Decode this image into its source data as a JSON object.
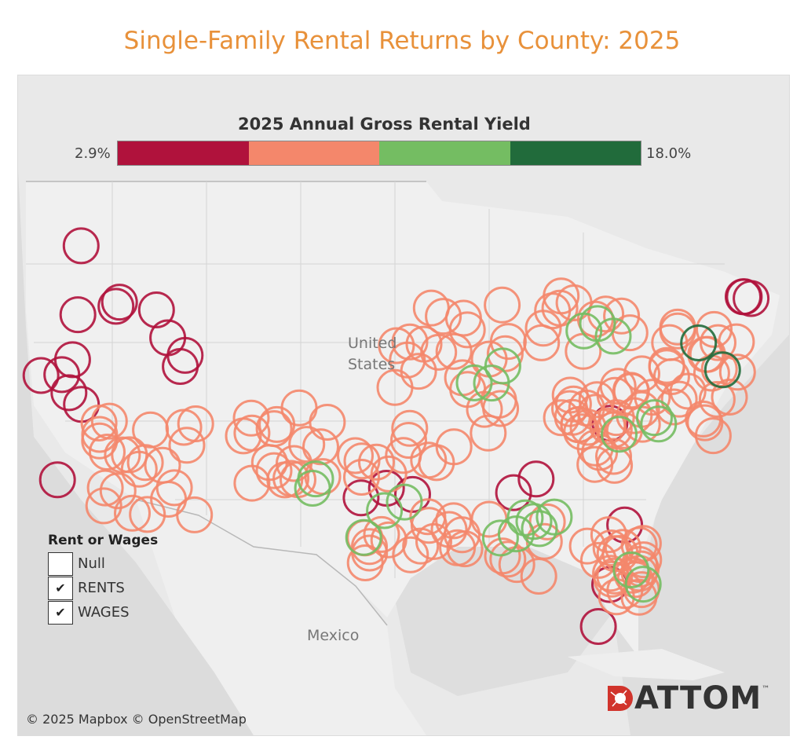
{
  "title": "Single-Family Rental Returns by County: 2025",
  "legend": {
    "title": "2025 Annual Gross Rental Yield",
    "min_label": "2.9%",
    "max_label": "18.0%",
    "colors": [
      "#b0123c",
      "#f4876b",
      "#74bd62",
      "#216b3b"
    ]
  },
  "map_labels": {
    "country_us_line1": "United",
    "country_us_line2": "States",
    "country_mexico": "Mexico"
  },
  "filter": {
    "title": "Rent or Wages",
    "options": [
      {
        "label": "Null",
        "checked": false
      },
      {
        "label": "RENTS",
        "checked": true
      },
      {
        "label": "WAGES",
        "checked": true
      }
    ]
  },
  "attribution": "© 2025 Mapbox © OpenStreetMap",
  "logo": {
    "text": "ATTOM",
    "tm": "™"
  },
  "markers": [
    {
      "c": 0,
      "n": 26
    },
    {
      "c": 1,
      "n": 180
    },
    {
      "c": 2,
      "n": 22
    },
    {
      "c": 3,
      "n": 2
    }
  ]
}
